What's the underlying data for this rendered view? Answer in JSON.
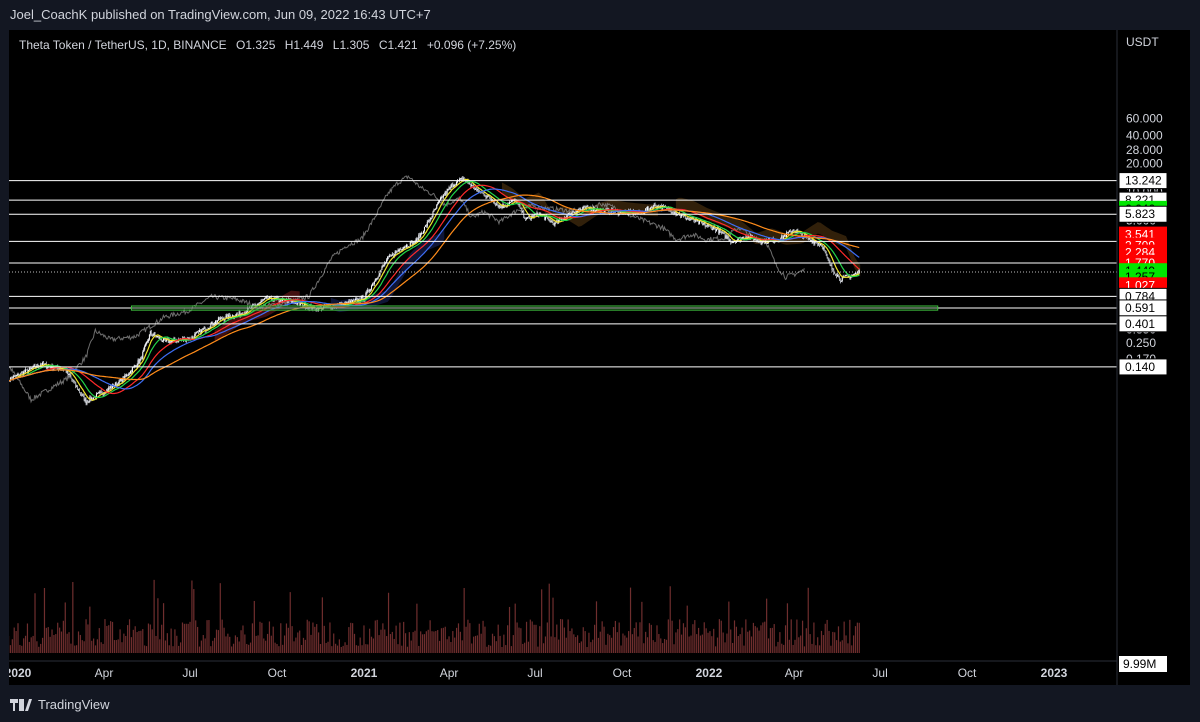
{
  "header": {
    "publisher": "Joel_CoachK published on TradingView.com, Jun 09, 2022 16:43 UTC+7"
  },
  "legend": {
    "symbol": "Theta Token / TetherUS, 1D, BINANCE",
    "open_label": "O",
    "open": "1.325",
    "high_label": "H",
    "high": "1.449",
    "low_label": "L",
    "low": "1.305",
    "close_label": "C",
    "close": "1.421",
    "change": "+0.096 (+7.25%)"
  },
  "brand": {
    "name": "TradingView"
  },
  "colors": {
    "up": "#d1d4dc",
    "down": "#c9cdd6",
    "grid": "#ffffff",
    "green_label": "#00e600",
    "red_label": "#ff0000",
    "white_label": "#ffffff",
    "ma_red": "#ff2a2a",
    "ma_orange": "#ff8c1a",
    "ma_green": "#22d64a",
    "ma_yellow": "#f0e62a",
    "ma_blue": "#3d6ef5",
    "ghost": "#8a8a8a",
    "cloud_red": "#7a1d1d",
    "cloud_brown": "#5a3a12",
    "cloud_blue": "#1e2a6e"
  },
  "chart_data": {
    "type": "candlestick",
    "scale": "log",
    "y_unit": "USDT",
    "ylim": [
      0.1,
      70
    ],
    "x_tick_labels": [
      "2020",
      "Apr",
      "Jul",
      "Oct",
      "2021",
      "Apr",
      "Jul",
      "Oct",
      "2022",
      "Apr",
      "Jul",
      "Oct",
      "2023"
    ],
    "y_tick_labels": [
      "60.000",
      "40.000",
      "28.000",
      "20.000",
      "10.000",
      "5.000",
      "0.350",
      "0.250",
      "0.170"
    ],
    "price_lines": [
      13.242,
      8.221,
      5.823,
      3.0,
      1.77,
      0.784,
      0.591,
      0.401,
      0.14
    ],
    "support_zone": [
      0.56,
      0.62
    ],
    "last_price": 1.421,
    "axis_labels": [
      {
        "text": "13.242",
        "style": "white",
        "value": 13.242
      },
      {
        "text": "8.221",
        "style": "white",
        "value": 8.221
      },
      {
        "text": "6.646",
        "style": "green",
        "value": 6.646
      },
      {
        "text": "5.823",
        "style": "white",
        "value": 5.823
      },
      {
        "text": "3.541",
        "style": "red",
        "value": 3.541
      },
      {
        "text": "2.709",
        "style": "red",
        "value": 2.709
      },
      {
        "text": "2.284",
        "style": "red",
        "value": 2.284
      },
      {
        "text": "1.770",
        "style": "red",
        "value": 1.77
      },
      {
        "text": "1.449",
        "style": "green",
        "value": 1.449
      },
      {
        "text": "1.257",
        "style": "green",
        "value": 1.257
      },
      {
        "text": "1.027",
        "style": "red",
        "value": 1.027
      },
      {
        "text": "0.784",
        "style": "white",
        "value": 0.784
      },
      {
        "text": "0.591",
        "style": "white",
        "value": 0.591
      },
      {
        "text": "0.401",
        "style": "white",
        "value": 0.401
      },
      {
        "text": "0.140",
        "style": "white",
        "value": 0.14
      }
    ],
    "volume_label": "9.99M",
    "price_path": [
      [
        "2019-12-20",
        0.1
      ],
      [
        "2020-01-25",
        0.15
      ],
      [
        "2020-02-20",
        0.13
      ],
      [
        "2020-03-13",
        0.06
      ],
      [
        "2020-04-20",
        0.1
      ],
      [
        "2020-05-10",
        0.17
      ],
      [
        "2020-05-20",
        0.32
      ],
      [
        "2020-06-05",
        0.26
      ],
      [
        "2020-07-01",
        0.28
      ],
      [
        "2020-08-01",
        0.45
      ],
      [
        "2020-08-25",
        0.52
      ],
      [
        "2020-09-20",
        0.74
      ],
      [
        "2020-10-15",
        0.7
      ],
      [
        "2020-11-10",
        0.58
      ],
      [
        "2020-12-10",
        0.64
      ],
      [
        "2021-01-01",
        0.75
      ],
      [
        "2021-01-25",
        1.9
      ],
      [
        "2021-02-10",
        2.6
      ],
      [
        "2021-02-25",
        3.0
      ],
      [
        "2021-03-10",
        4.8
      ],
      [
        "2021-03-25",
        9.0
      ],
      [
        "2021-04-05",
        12.0
      ],
      [
        "2021-04-16",
        14.0
      ],
      [
        "2021-04-30",
        10.5
      ],
      [
        "2021-05-12",
        9.0
      ],
      [
        "2021-05-25",
        7.0
      ],
      [
        "2021-06-10",
        8.2
      ],
      [
        "2021-06-22",
        5.1
      ],
      [
        "2021-07-05",
        5.9
      ],
      [
        "2021-07-22",
        4.6
      ],
      [
        "2021-08-10",
        6.2
      ],
      [
        "2021-08-25",
        6.8
      ],
      [
        "2021-09-10",
        6.4
      ],
      [
        "2021-10-01",
        6.1
      ],
      [
        "2021-10-20",
        6.0
      ],
      [
        "2021-11-05",
        7.2
      ],
      [
        "2021-11-20",
        6.6
      ],
      [
        "2021-12-05",
        5.5
      ],
      [
        "2021-12-25",
        4.6
      ],
      [
        "2022-01-10",
        4.0
      ],
      [
        "2022-01-25",
        3.0
      ],
      [
        "2022-02-10",
        3.4
      ],
      [
        "2022-02-25",
        3.0
      ],
      [
        "2022-03-15",
        3.1
      ],
      [
        "2022-04-01",
        4.0
      ],
      [
        "2022-04-15",
        3.2
      ],
      [
        "2022-04-30",
        2.8
      ],
      [
        "2022-05-10",
        1.6
      ],
      [
        "2022-05-20",
        1.2
      ],
      [
        "2022-05-31",
        1.3
      ],
      [
        "2022-06-09",
        1.42
      ]
    ]
  }
}
